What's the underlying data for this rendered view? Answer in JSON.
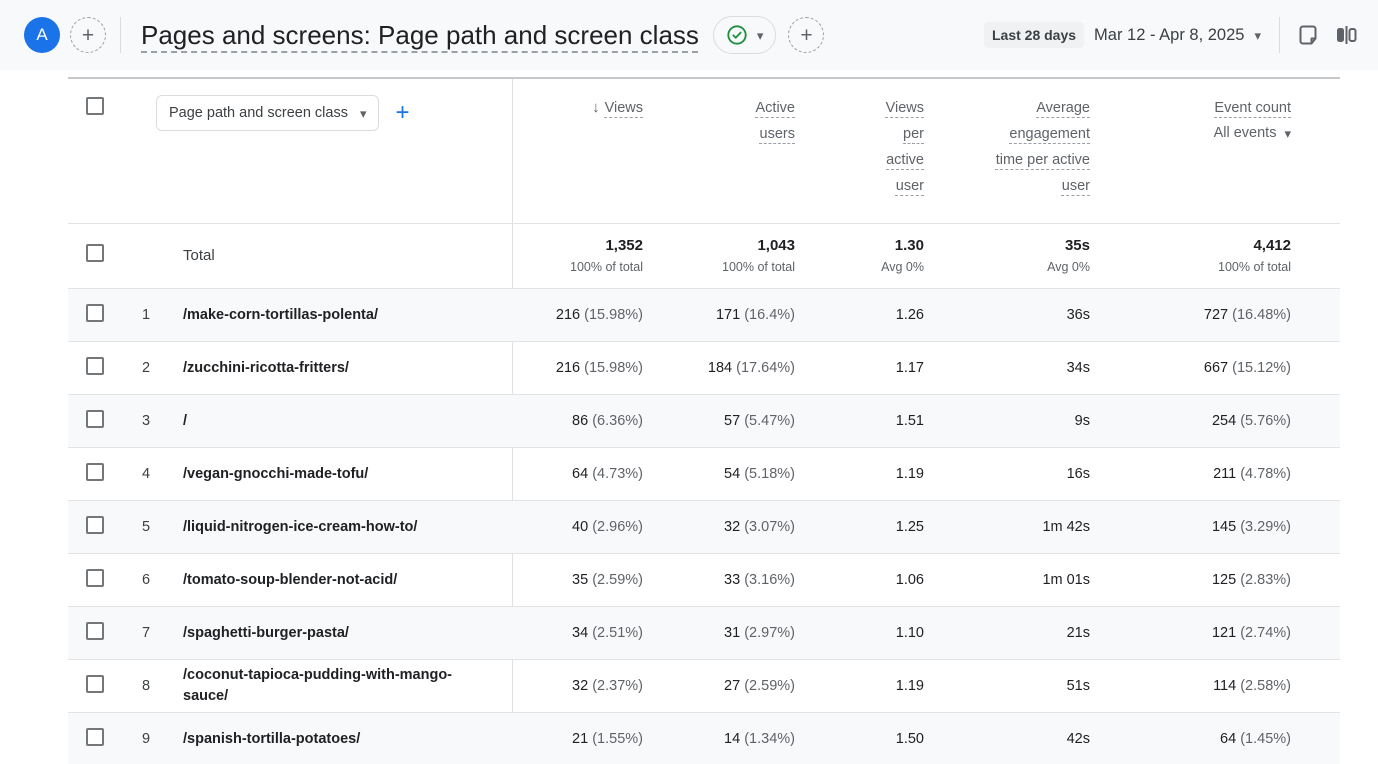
{
  "topbar": {
    "avatar_letter": "A",
    "plus": "+",
    "title": "Pages and screens: Page path and screen class",
    "caret": "▾",
    "date_badge": "Last 28 days",
    "date_range": "Mar 12 - Apr 8, 2025"
  },
  "table": {
    "dimension_selector_label": "Page path and screen class",
    "add_column": "+",
    "sort_arrow": "↓",
    "caret": "▾",
    "columns": {
      "views": "Views",
      "active_users": "Active users",
      "views_per_active_user": "Views per active user",
      "avg_engagement": "Average engagement time per active user",
      "event_count": "Event count"
    },
    "event_filter": "All events",
    "total": {
      "label": "Total",
      "views": "1,352",
      "views_sub": "100% of total",
      "active_users": "1,043",
      "active_users_sub": "100% of total",
      "views_per_active_user": "1.30",
      "views_per_active_user_sub": "Avg 0%",
      "avg_engagement": "35s",
      "avg_engagement_sub": "Avg 0%",
      "event_count": "4,412",
      "event_count_sub": "100% of total"
    },
    "rows": [
      {
        "rank": "1",
        "path": "/make-corn-tortillas-polenta/",
        "views": "216",
        "views_pct": "(15.98%)",
        "active_users": "171",
        "active_users_pct": "(16.4%)",
        "views_per_active_user": "1.26",
        "avg_engagement": "36s",
        "event_count": "727",
        "event_count_pct": "(16.48%)"
      },
      {
        "rank": "2",
        "path": "/zucchini-ricotta-fritters/",
        "views": "216",
        "views_pct": "(15.98%)",
        "active_users": "184",
        "active_users_pct": "(17.64%)",
        "views_per_active_user": "1.17",
        "avg_engagement": "34s",
        "event_count": "667",
        "event_count_pct": "(15.12%)"
      },
      {
        "rank": "3",
        "path": "/",
        "views": "86",
        "views_pct": "(6.36%)",
        "active_users": "57",
        "active_users_pct": "(5.47%)",
        "views_per_active_user": "1.51",
        "avg_engagement": "9s",
        "event_count": "254",
        "event_count_pct": "(5.76%)"
      },
      {
        "rank": "4",
        "path": "/vegan-gnocchi-made-tofu/",
        "views": "64",
        "views_pct": "(4.73%)",
        "active_users": "54",
        "active_users_pct": "(5.18%)",
        "views_per_active_user": "1.19",
        "avg_engagement": "16s",
        "event_count": "211",
        "event_count_pct": "(4.78%)"
      },
      {
        "rank": "5",
        "path": "/liquid-nitrogen-ice-cream-how-to/",
        "views": "40",
        "views_pct": "(2.96%)",
        "active_users": "32",
        "active_users_pct": "(3.07%)",
        "views_per_active_user": "1.25",
        "avg_engagement": "1m 42s",
        "event_count": "145",
        "event_count_pct": "(3.29%)"
      },
      {
        "rank": "6",
        "path": "/tomato-soup-blender-not-acid/",
        "views": "35",
        "views_pct": "(2.59%)",
        "active_users": "33",
        "active_users_pct": "(3.16%)",
        "views_per_active_user": "1.06",
        "avg_engagement": "1m 01s",
        "event_count": "125",
        "event_count_pct": "(2.83%)"
      },
      {
        "rank": "7",
        "path": "/spaghetti-burger-pasta/",
        "views": "34",
        "views_pct": "(2.51%)",
        "active_users": "31",
        "active_users_pct": "(2.97%)",
        "views_per_active_user": "1.10",
        "avg_engagement": "21s",
        "event_count": "121",
        "event_count_pct": "(2.74%)"
      },
      {
        "rank": "8",
        "path": "/coconut-tapioca-pudding-with-mango-sauce/",
        "views": "32",
        "views_pct": "(2.37%)",
        "active_users": "27",
        "active_users_pct": "(2.59%)",
        "views_per_active_user": "1.19",
        "avg_engagement": "51s",
        "event_count": "114",
        "event_count_pct": "(2.58%)"
      },
      {
        "rank": "9",
        "path": "/spanish-tortilla-potatoes/",
        "views": "21",
        "views_pct": "(1.55%)",
        "active_users": "14",
        "active_users_pct": "(1.34%)",
        "views_per_active_user": "1.50",
        "avg_engagement": "42s",
        "event_count": "64",
        "event_count_pct": "(1.45%)"
      }
    ]
  },
  "colors": {
    "accent_blue": "#1a73e8",
    "check_green": "#1e8e3e",
    "text_primary": "#202124",
    "text_secondary": "#5f6368",
    "row_alt": "#f8f9fa"
  }
}
